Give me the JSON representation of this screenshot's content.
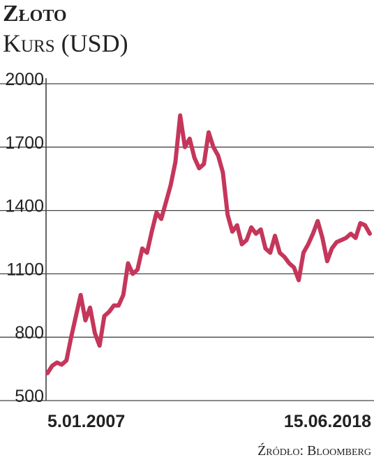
{
  "chart_data": {
    "type": "line",
    "title": "Złoto",
    "subtitle": "Kurs (USD)",
    "source": "Źródło: Bloomberg",
    "categories": [
      "5.01.2007",
      null,
      null,
      null,
      null,
      null,
      null,
      null,
      null,
      null,
      null,
      null,
      null,
      null,
      null,
      null,
      null,
      null,
      null,
      null,
      null,
      null,
      null,
      null,
      null,
      null,
      null,
      null,
      null,
      null,
      null,
      null,
      null,
      null,
      null,
      null,
      null,
      null,
      null,
      null,
      null,
      null,
      null,
      null,
      null,
      null,
      null,
      null,
      null,
      null,
      null,
      null,
      null,
      null,
      null,
      null,
      null,
      null,
      null,
      null,
      null,
      null,
      null,
      null,
      null,
      null,
      null,
      null,
      "15.06.2018"
    ],
    "values": [
      630,
      665,
      680,
      670,
      690,
      800,
      900,
      1000,
      880,
      940,
      820,
      760,
      900,
      920,
      950,
      950,
      1000,
      1150,
      1100,
      1120,
      1220,
      1200,
      1300,
      1390,
      1360,
      1440,
      1520,
      1630,
      1850,
      1700,
      1740,
      1650,
      1600,
      1620,
      1770,
      1700,
      1660,
      1580,
      1380,
      1300,
      1330,
      1240,
      1260,
      1320,
      1290,
      1310,
      1220,
      1200,
      1280,
      1200,
      1180,
      1150,
      1130,
      1070,
      1200,
      1240,
      1290,
      1350,
      1270,
      1160,
      1220,
      1250,
      1260,
      1270,
      1290,
      1270,
      1340,
      1330,
      1290
    ],
    "color": "#c5365b",
    "ylim": [
      500,
      2000
    ],
    "yticks": [
      500,
      800,
      1100,
      1400,
      1700,
      2000
    ],
    "grid": true
  }
}
